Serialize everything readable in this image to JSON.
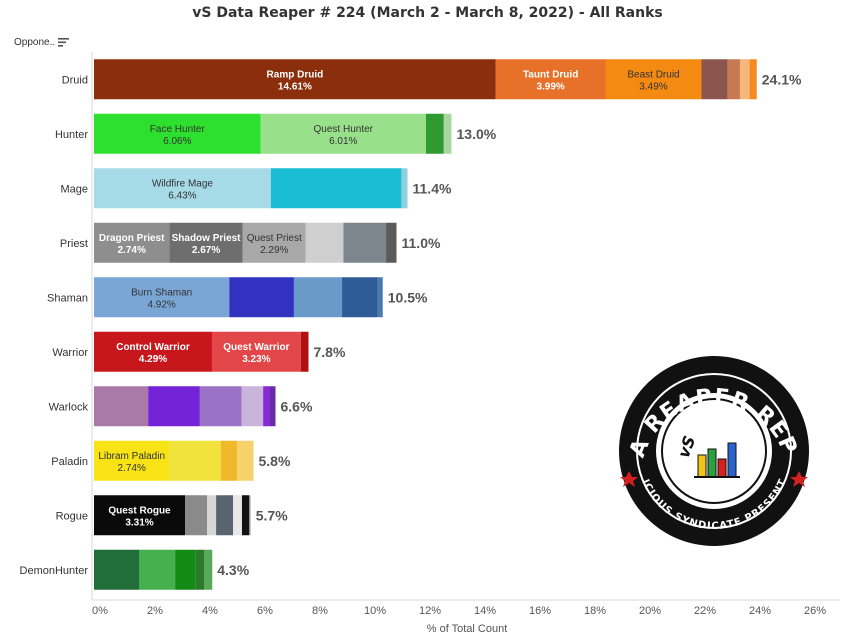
{
  "title": "vS Data Reaper # 224 (March 2 - March 8, 2022) - All Ranks",
  "sort_control": {
    "label": "Oppone..",
    "icon": "sort-icon"
  },
  "logo": {
    "top": "DATA REAPER REPORT",
    "bottom": "VICIOUS SYNDICATE PRESENTS",
    "initials": "vS"
  },
  "chart_data": {
    "type": "bar",
    "orientation": "horizontal",
    "stacked": true,
    "title": "vS Data Reaper # 224 (March 2 - March 8, 2022) - All Ranks",
    "xlabel": "% of Total Count",
    "ylabel": "Oppone..",
    "xlim": [
      0,
      26
    ],
    "x_ticks": [
      "0%",
      "2%",
      "4%",
      "6%",
      "8%",
      "10%",
      "12%",
      "14%",
      "16%",
      "18%",
      "20%",
      "22%",
      "24%",
      "26%"
    ],
    "grid": false,
    "categories": [
      {
        "name": "Druid",
        "total_label": "24.1%",
        "segments": [
          {
            "label": "Ramp Druid",
            "value_label": "14.61%",
            "value": 14.61,
            "color": "#8b2e0c",
            "text_color": "#ffffff"
          },
          {
            "label": "Taunt Druid",
            "value_label": "3.99%",
            "value": 3.99,
            "color": "#e8712a",
            "text_color": "#ffffff"
          },
          {
            "label": "Beast Druid",
            "value_label": "3.49%",
            "value": 3.49,
            "color": "#f48a12",
            "text_color": "#333333"
          },
          {
            "label": "",
            "value_label": "",
            "value": 0.95,
            "color": "#8a564d",
            "text_color": "#ffffff"
          },
          {
            "label": "",
            "value_label": "",
            "value": 0.45,
            "color": "#c77a52",
            "text_color": "#ffffff"
          },
          {
            "label": "",
            "value_label": "",
            "value": 0.35,
            "color": "#f7b77a",
            "text_color": "#ffffff"
          },
          {
            "label": "",
            "value_label": "",
            "value": 0.26,
            "color": "#f58a1f",
            "text_color": "#ffffff"
          }
        ]
      },
      {
        "name": "Hunter",
        "total_label": "13.0%",
        "segments": [
          {
            "label": "Face Hunter",
            "value_label": "6.06%",
            "value": 6.06,
            "color": "#2ee02e",
            "text_color": "#333333"
          },
          {
            "label": "Quest Hunter",
            "value_label": "6.01%",
            "value": 6.01,
            "color": "#98e08a",
            "text_color": "#333333"
          },
          {
            "label": "",
            "value_label": "",
            "value": 0.65,
            "color": "#2f9a2f",
            "text_color": "#ffffff"
          },
          {
            "label": "",
            "value_label": "",
            "value": 0.28,
            "color": "#a8d8a0",
            "text_color": "#ffffff"
          }
        ]
      },
      {
        "name": "Mage",
        "total_label": "11.4%",
        "segments": [
          {
            "label": "Wildfire Mage",
            "value_label": "6.43%",
            "value": 6.43,
            "color": "#a6dae6",
            "text_color": "#333333"
          },
          {
            "label": "",
            "value_label": "",
            "value": 4.75,
            "color": "#1bbdd4",
            "text_color": "#ffffff"
          },
          {
            "label": "",
            "value_label": "",
            "value": 0.22,
            "color": "#8fd0e0",
            "text_color": "#ffffff"
          }
        ]
      },
      {
        "name": "Priest",
        "total_label": "11.0%",
        "segments": [
          {
            "label": "Dragon Priest",
            "value_label": "2.74%",
            "value": 2.74,
            "color": "#8e8e8e",
            "text_color": "#ffffff"
          },
          {
            "label": "Shadow Priest",
            "value_label": "2.67%",
            "value": 2.67,
            "color": "#6e6e6e",
            "text_color": "#ffffff"
          },
          {
            "label": "Quest Priest",
            "value_label": "2.29%",
            "value": 2.29,
            "color": "#a8a8a8",
            "text_color": "#333333"
          },
          {
            "label": "",
            "value_label": "",
            "value": 1.37,
            "color": "#cfcfcf",
            "text_color": "#ffffff"
          },
          {
            "label": "",
            "value_label": "",
            "value": 1.55,
            "color": "#7c868c",
            "text_color": "#ffffff"
          },
          {
            "label": "",
            "value_label": "",
            "value": 0.38,
            "color": "#5a5a5a",
            "text_color": "#ffffff"
          }
        ]
      },
      {
        "name": "Shaman",
        "total_label": "10.5%",
        "segments": [
          {
            "label": "Burn Shaman",
            "value_label": "4.92%",
            "value": 4.92,
            "color": "#7aa6d6",
            "text_color": "#333333"
          },
          {
            "label": "",
            "value_label": "",
            "value": 2.35,
            "color": "#3232c0",
            "text_color": "#ffffff"
          },
          {
            "label": "",
            "value_label": "",
            "value": 1.75,
            "color": "#6a9ac8",
            "text_color": "#ffffff"
          },
          {
            "label": "",
            "value_label": "",
            "value": 1.3,
            "color": "#2e5a96",
            "text_color": "#ffffff"
          },
          {
            "label": "",
            "value_label": "",
            "value": 0.18,
            "color": "#4a7ab0",
            "text_color": "#ffffff"
          }
        ]
      },
      {
        "name": "Warrior",
        "total_label": "7.8%",
        "segments": [
          {
            "label": "Control Warrior",
            "value_label": "4.29%",
            "value": 4.29,
            "color": "#c8161d",
            "text_color": "#ffffff"
          },
          {
            "label": "Quest Warrior",
            "value_label": "3.23%",
            "value": 3.23,
            "color": "#e34648",
            "text_color": "#ffffff"
          },
          {
            "label": "",
            "value_label": "",
            "value": 0.28,
            "color": "#b01010",
            "text_color": "#ffffff"
          }
        ]
      },
      {
        "name": "Warlock",
        "total_label": "6.6%",
        "segments": [
          {
            "label": "",
            "value_label": "",
            "value": 1.97,
            "color": "#a97aa8",
            "text_color": "#ffffff"
          },
          {
            "label": "",
            "value_label": "",
            "value": 1.88,
            "color": "#7424d6",
            "text_color": "#ffffff"
          },
          {
            "label": "",
            "value_label": "",
            "value": 1.52,
            "color": "#9a72c6",
            "text_color": "#ffffff"
          },
          {
            "label": "",
            "value_label": "",
            "value": 0.78,
            "color": "#c9b4dc",
            "text_color": "#ffffff"
          },
          {
            "label": "",
            "value_label": "",
            "value": 0.23,
            "color": "#8a2ad6",
            "text_color": "#ffffff"
          },
          {
            "label": "",
            "value_label": "",
            "value": 0.22,
            "color": "#6b2aa8",
            "text_color": "#ffffff"
          }
        ]
      },
      {
        "name": "Paladin",
        "total_label": "5.8%",
        "segments": [
          {
            "label": "Libram Paladin",
            "value_label": "2.74%",
            "value": 2.74,
            "color": "#f8e416",
            "text_color": "#333333"
          },
          {
            "label": "",
            "value_label": "",
            "value": 1.87,
            "color": "#f2e23c",
            "text_color": "#ffffff"
          },
          {
            "label": "",
            "value_label": "",
            "value": 0.6,
            "color": "#f0b82a",
            "text_color": "#ffffff"
          },
          {
            "label": "",
            "value_label": "",
            "value": 0.59,
            "color": "#f5d26a",
            "text_color": "#ffffff"
          }
        ]
      },
      {
        "name": "Rogue",
        "total_label": "5.7%",
        "segments": [
          {
            "label": "Quest Rogue",
            "value_label": "3.31%",
            "value": 3.31,
            "color": "#0a0a0a",
            "text_color": "#ffffff"
          },
          {
            "label": "",
            "value_label": "",
            "value": 0.8,
            "color": "#8a8a8a",
            "text_color": "#ffffff"
          },
          {
            "label": "",
            "value_label": "",
            "value": 0.33,
            "color": "#d6d6d6",
            "text_color": "#ffffff"
          },
          {
            "label": "",
            "value_label": "",
            "value": 0.62,
            "color": "#5a6470",
            "text_color": "#ffffff"
          },
          {
            "label": "",
            "value_label": "",
            "value": 0.32,
            "color": "#e8e8e8",
            "text_color": "#ffffff"
          },
          {
            "label": "",
            "value_label": "",
            "value": 0.27,
            "color": "#111111",
            "text_color": "#ffffff"
          },
          {
            "label": "",
            "value_label": "",
            "value": 0.05,
            "color": "#bbbbbb",
            "text_color": "#ffffff"
          }
        ]
      },
      {
        "name": "DemonHunter",
        "total_label": "4.3%",
        "segments": [
          {
            "label": "",
            "value_label": "",
            "value": 1.65,
            "color": "#226e3a",
            "text_color": "#ffffff"
          },
          {
            "label": "",
            "value_label": "",
            "value": 1.3,
            "color": "#44b04e",
            "text_color": "#ffffff"
          },
          {
            "label": "",
            "value_label": "",
            "value": 0.75,
            "color": "#138a13",
            "text_color": "#ffffff"
          },
          {
            "label": "",
            "value_label": "",
            "value": 0.3,
            "color": "#2a7a2a",
            "text_color": "#ffffff"
          },
          {
            "label": "",
            "value_label": "",
            "value": 0.3,
            "color": "#5aa85a",
            "text_color": "#ffffff"
          }
        ]
      }
    ]
  }
}
